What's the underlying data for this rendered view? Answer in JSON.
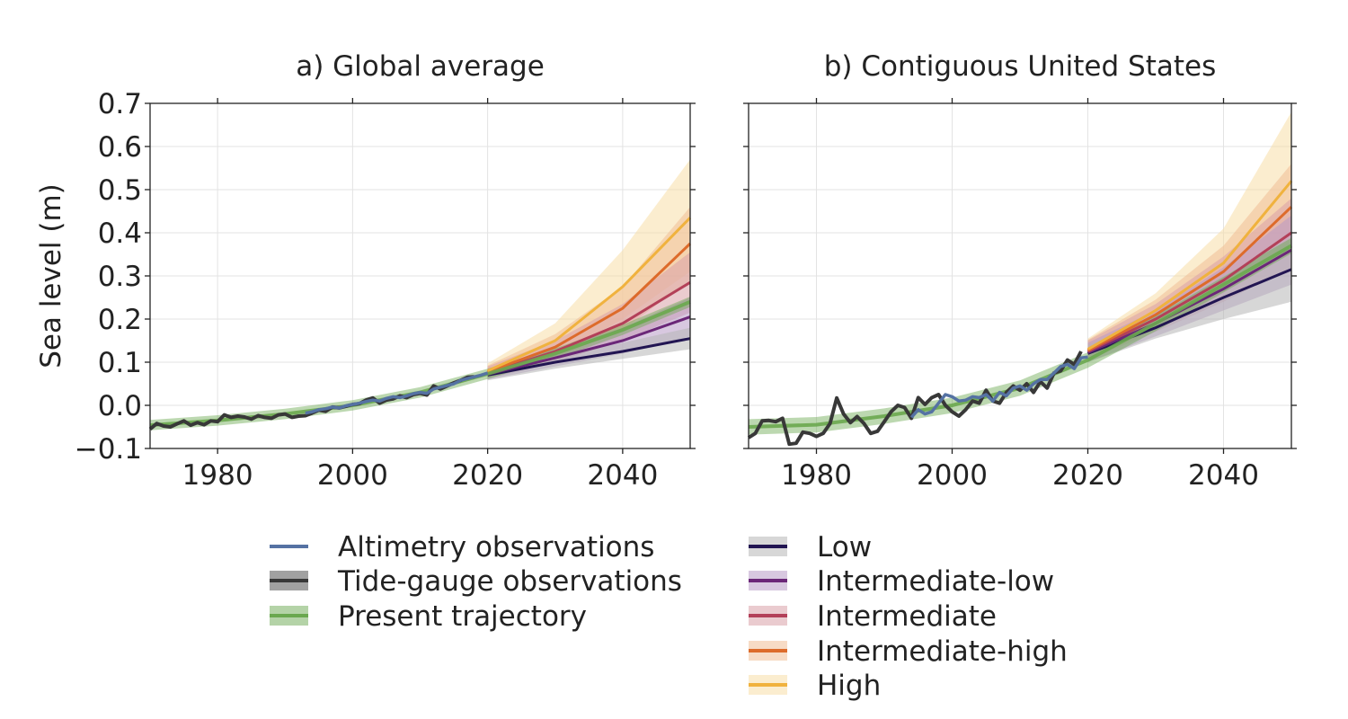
{
  "chart_data": [
    {
      "type": "line",
      "title": "a) Global average",
      "xlabel": "",
      "ylabel": "Sea level (m)",
      "xlim": [
        1970,
        2050
      ],
      "ylim": [
        -0.1,
        0.7
      ],
      "xticks": [
        "1980",
        "2000",
        "2020",
        "2040"
      ],
      "yticks": [
        "−0.1",
        "0.0",
        "0.1",
        "0.2",
        "0.3",
        "0.4",
        "0.5",
        "0.6",
        "0.7"
      ],
      "grid": true,
      "observations": {
        "tide_gauge": {
          "name": "Tide-gauge observations",
          "x": [
            1970,
            1971,
            1972,
            1973,
            1974,
            1975,
            1976,
            1977,
            1978,
            1979,
            1980,
            1981,
            1982,
            1983,
            1984,
            1985,
            1986,
            1987,
            1988,
            1989,
            1990,
            1991,
            1992,
            1993,
            1994,
            1995,
            1996,
            1997,
            1998,
            1999,
            2000,
            2001,
            2002,
            2003,
            2004,
            2005,
            2006,
            2007,
            2008,
            2009,
            2010,
            2011,
            2012,
            2013,
            2014,
            2015,
            2016,
            2017,
            2018
          ],
          "y": [
            -0.055,
            -0.042,
            -0.048,
            -0.05,
            -0.043,
            -0.036,
            -0.046,
            -0.04,
            -0.045,
            -0.036,
            -0.038,
            -0.022,
            -0.028,
            -0.025,
            -0.027,
            -0.032,
            -0.024,
            -0.028,
            -0.03,
            -0.022,
            -0.02,
            -0.028,
            -0.025,
            -0.024,
            -0.018,
            -0.011,
            -0.014,
            -0.004,
            -0.006,
            -0.002,
            0.002,
            0.004,
            0.012,
            0.017,
            0.005,
            0.012,
            0.015,
            0.022,
            0.018,
            0.025,
            0.028,
            0.024,
            0.045,
            0.038,
            0.045,
            0.052,
            0.058,
            0.065,
            0.066
          ]
        },
        "altimetry": {
          "name": "Altimetry observations",
          "x": [
            1993,
            1994,
            1995,
            1996,
            1997,
            1998,
            1999,
            2000,
            2001,
            2002,
            2003,
            2004,
            2005,
            2006,
            2007,
            2008,
            2009,
            2010,
            2011,
            2012,
            2013,
            2014,
            2015,
            2016,
            2017,
            2018,
            2019,
            2020
          ],
          "y": [
            -0.018,
            -0.015,
            -0.01,
            -0.008,
            -0.004,
            -0.006,
            -0.001,
            0.002,
            0.005,
            0.009,
            0.012,
            0.01,
            0.016,
            0.02,
            0.018,
            0.022,
            0.027,
            0.03,
            0.028,
            0.038,
            0.042,
            0.046,
            0.05,
            0.058,
            0.062,
            0.066,
            0.07,
            0.075
          ]
        },
        "present_trajectory": {
          "name": "Present trajectory",
          "x": [
            1970,
            1980,
            1990,
            2000,
            2010,
            2020,
            2030,
            2040,
            2050
          ],
          "y": [
            -0.046,
            -0.035,
            -0.02,
            0.0,
            0.03,
            0.073,
            0.12,
            0.175,
            0.24
          ],
          "band": 0.012
        }
      },
      "scenarios": [
        {
          "name": "Low",
          "x": [
            2020,
            2030,
            2040,
            2050
          ],
          "y": [
            0.07,
            0.1,
            0.125,
            0.155
          ],
          "lo": [
            0.058,
            0.085,
            0.108,
            0.13
          ],
          "hi": [
            0.082,
            0.115,
            0.145,
            0.18
          ]
        },
        {
          "name": "Intermediate-low",
          "x": [
            2020,
            2030,
            2040,
            2050
          ],
          "y": [
            0.072,
            0.11,
            0.15,
            0.205
          ],
          "lo": [
            0.06,
            0.09,
            0.12,
            0.16
          ],
          "hi": [
            0.085,
            0.13,
            0.18,
            0.25
          ]
        },
        {
          "name": "Intermediate",
          "x": [
            2020,
            2030,
            2040,
            2050
          ],
          "y": [
            0.075,
            0.125,
            0.19,
            0.285
          ],
          "lo": [
            0.062,
            0.1,
            0.15,
            0.215
          ],
          "hi": [
            0.09,
            0.15,
            0.235,
            0.355
          ]
        },
        {
          "name": "Intermediate-high",
          "x": [
            2020,
            2030,
            2040,
            2050
          ],
          "y": [
            0.078,
            0.135,
            0.225,
            0.375
          ],
          "lo": [
            0.065,
            0.11,
            0.175,
            0.29
          ],
          "hi": [
            0.092,
            0.165,
            0.275,
            0.46
          ]
        },
        {
          "name": "High",
          "x": [
            2020,
            2030,
            2040,
            2050
          ],
          "y": [
            0.08,
            0.15,
            0.275,
            0.435
          ],
          "lo": [
            0.065,
            0.115,
            0.2,
            0.31
          ],
          "hi": [
            0.097,
            0.19,
            0.36,
            0.57
          ]
        }
      ]
    },
    {
      "type": "line",
      "title": "b) Contiguous United States",
      "xlabel": "",
      "ylabel": "",
      "xlim": [
        1970,
        2050
      ],
      "ylim": [
        -0.1,
        0.7
      ],
      "xticks": [
        "1980",
        "2000",
        "2020",
        "2040"
      ],
      "yticks": [],
      "grid": true,
      "observations": {
        "tide_gauge": {
          "name": "Tide-gauge observations",
          "x": [
            1970,
            1971,
            1972,
            1973,
            1974,
            1975,
            1976,
            1977,
            1978,
            1979,
            1980,
            1981,
            1982,
            1983,
            1984,
            1985,
            1986,
            1987,
            1988,
            1989,
            1990,
            1991,
            1992,
            1993,
            1994,
            1995,
            1996,
            1997,
            1998,
            1999,
            2000,
            2001,
            2002,
            2003,
            2004,
            2005,
            2006,
            2007,
            2008,
            2009,
            2010,
            2011,
            2012,
            2013,
            2014,
            2015,
            2016,
            2017,
            2018,
            2019
          ],
          "y": [
            -0.075,
            -0.065,
            -0.036,
            -0.035,
            -0.038,
            -0.03,
            -0.09,
            -0.088,
            -0.062,
            -0.065,
            -0.072,
            -0.065,
            -0.042,
            0.017,
            -0.02,
            -0.04,
            -0.026,
            -0.042,
            -0.065,
            -0.06,
            -0.038,
            -0.015,
            0.0,
            -0.005,
            -0.03,
            0.018,
            0.002,
            0.018,
            0.025,
            0.0,
            -0.015,
            -0.025,
            -0.01,
            0.01,
            0.005,
            0.035,
            0.01,
            0.005,
            0.03,
            0.045,
            0.035,
            0.05,
            0.03,
            0.055,
            0.04,
            0.075,
            0.08,
            0.105,
            0.095,
            0.125
          ]
        },
        "altimetry": {
          "name": "Altimetry observations",
          "x": [
            1994,
            1995,
            1996,
            1997,
            1998,
            1999,
            2000,
            2001,
            2002,
            2003,
            2004,
            2005,
            2006,
            2007,
            2008,
            2009,
            2010,
            2011,
            2012,
            2013,
            2014,
            2015,
            2016,
            2017,
            2018,
            2019,
            2020
          ],
          "y": [
            -0.028,
            -0.01,
            -0.02,
            -0.015,
            0.005,
            0.025,
            0.02,
            0.01,
            0.012,
            0.02,
            0.018,
            0.025,
            0.01,
            0.03,
            0.022,
            0.04,
            0.045,
            0.035,
            0.05,
            0.06,
            0.06,
            0.075,
            0.09,
            0.095,
            0.085,
            0.11,
            0.112
          ]
        },
        "present_trajectory": {
          "name": "Present trajectory",
          "x": [
            1970,
            1980,
            1990,
            2000,
            2010,
            2020,
            2030,
            2040,
            2050
          ],
          "y": [
            -0.05,
            -0.045,
            -0.025,
            0.0,
            0.04,
            0.105,
            0.19,
            0.28,
            0.37
          ],
          "band": 0.018
        }
      },
      "scenarios": [
        {
          "name": "Low",
          "x": [
            2020,
            2030,
            2040,
            2050
          ],
          "y": [
            0.12,
            0.18,
            0.25,
            0.315
          ],
          "lo": [
            0.1,
            0.155,
            0.2,
            0.24
          ],
          "hi": [
            0.14,
            0.21,
            0.3,
            0.39
          ]
        },
        {
          "name": "Intermediate-low",
          "x": [
            2020,
            2030,
            2040,
            2050
          ],
          "y": [
            0.122,
            0.19,
            0.27,
            0.36
          ],
          "lo": [
            0.1,
            0.16,
            0.22,
            0.28
          ],
          "hi": [
            0.145,
            0.22,
            0.32,
            0.44
          ]
        },
        {
          "name": "Intermediate",
          "x": [
            2020,
            2030,
            2040,
            2050
          ],
          "y": [
            0.125,
            0.2,
            0.29,
            0.4
          ],
          "lo": [
            0.105,
            0.17,
            0.24,
            0.32
          ],
          "hi": [
            0.15,
            0.235,
            0.345,
            0.48
          ]
        },
        {
          "name": "Intermediate-high",
          "x": [
            2020,
            2030,
            2040,
            2050
          ],
          "y": [
            0.127,
            0.21,
            0.31,
            0.46
          ],
          "lo": [
            0.105,
            0.175,
            0.26,
            0.37
          ],
          "hi": [
            0.152,
            0.245,
            0.37,
            0.56
          ]
        },
        {
          "name": "High",
          "x": [
            2020,
            2030,
            2040,
            2050
          ],
          "y": [
            0.13,
            0.22,
            0.33,
            0.52
          ],
          "lo": [
            0.108,
            0.18,
            0.27,
            0.4
          ],
          "hi": [
            0.155,
            0.26,
            0.41,
            0.68
          ]
        }
      ]
    }
  ],
  "legend": {
    "left": [
      "Altimetry observations",
      "Tide-gauge observations",
      "Present trajectory"
    ],
    "right": [
      "Low",
      "Intermediate-low",
      "Intermediate",
      "Intermediate-high",
      "High"
    ]
  },
  "colors": {
    "altimetry": "#5572a3",
    "tide_gauge": "#383838",
    "present_trajectory": "#6aa84f",
    "scenarios": {
      "Low": "#221552",
      "Intermediate-low": "#6b2778",
      "Intermediate": "#b34059",
      "Intermediate-high": "#dd6b2b",
      "High": "#f0b23e"
    },
    "scenario_bands": {
      "Low": "#b7b7b7",
      "Intermediate-low": "#b89bc7",
      "Intermediate": "#d9a0a8",
      "Intermediate-high": "#f0bd95",
      "High": "#f8dea7"
    },
    "grid": "#e3e3e3",
    "axis": "#222222"
  }
}
